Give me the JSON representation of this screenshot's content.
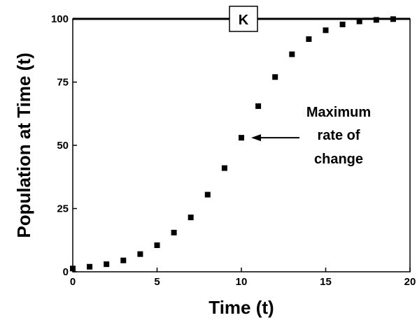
{
  "chart_data": {
    "type": "scatter",
    "title": "",
    "xlabel": "Time (t)",
    "ylabel": "Population at Time (t)",
    "xlim": [
      0,
      20
    ],
    "ylim": [
      0,
      100
    ],
    "xticks": [
      "0",
      "5",
      "10",
      "15",
      "20"
    ],
    "yticks": [
      "0",
      "25",
      "50",
      "75",
      "100"
    ],
    "grid": false,
    "series": [
      {
        "x": [
          0,
          1,
          2,
          3,
          4,
          5,
          6,
          7,
          8,
          9,
          10,
          11,
          12,
          13,
          14,
          15,
          16,
          17,
          18,
          19
        ],
        "y": [
          1.3,
          2.0,
          3.0,
          4.5,
          7.0,
          10.5,
          15.5,
          21.5,
          30.5,
          41.0,
          53.0,
          65.5,
          77.0,
          86.0,
          92.0,
          95.5,
          97.8,
          99.0,
          99.6,
          99.9
        ]
      }
    ],
    "carrying_capacity": {
      "label": "K",
      "value": 100
    },
    "annotations": [
      {
        "lines": [
          "Maximum",
          "rate of",
          "change"
        ],
        "points_to": {
          "x": 10,
          "y": 53
        }
      }
    ]
  }
}
